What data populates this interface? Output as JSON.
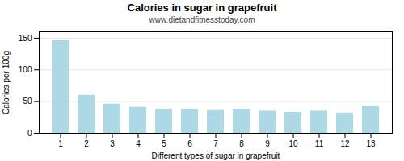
{
  "chart_data": {
    "type": "bar",
    "title": "Calories in sugar in grapefruit",
    "subtitle": "www.dietandfitnesstoday.com",
    "xlabel": "Different types of sugar in grapefruit",
    "ylabel": "Calories per 100g",
    "categories": [
      1,
      2,
      3,
      4,
      5,
      6,
      7,
      8,
      9,
      10,
      11,
      12,
      13
    ],
    "values": [
      146,
      60,
      46,
      41,
      38,
      37,
      36,
      38,
      35,
      33,
      35,
      32,
      42
    ],
    "color": "#add8e6",
    "ylim": [
      0,
      160
    ],
    "yticks": [
      0,
      50,
      100,
      150
    ],
    "grid": true
  }
}
